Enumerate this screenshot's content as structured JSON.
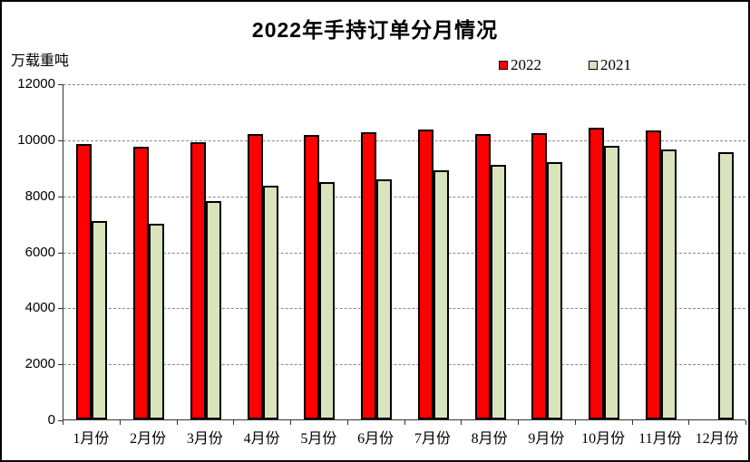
{
  "title": "2022年手持订单分月情况",
  "unit_label": "万载重吨",
  "legend": {
    "items": [
      {
        "label": "2022",
        "color": "#FF0000"
      },
      {
        "label": "2021",
        "color": "#D8E4BC"
      }
    ]
  },
  "chart_data": {
    "type": "bar",
    "title": "2022年手持订单分月情况",
    "ylabel": "万载重吨",
    "categories": [
      "1月份",
      "2月份",
      "3月份",
      "4月份",
      "5月份",
      "6月份",
      "7月份",
      "8月份",
      "9月份",
      "10月份",
      "11月份",
      "12月份"
    ],
    "series": [
      {
        "name": "2022",
        "color": "#FF0000",
        "values": [
          9820,
          9740,
          9890,
          10200,
          10170,
          10250,
          10350,
          10190,
          10220,
          10400,
          10330,
          null
        ]
      },
      {
        "name": "2021",
        "color": "#D8E4BC",
        "values": [
          7070,
          6980,
          7800,
          8360,
          8470,
          8560,
          8900,
          9080,
          9180,
          9770,
          9630,
          9550
        ]
      }
    ],
    "ylim": [
      0,
      12000
    ],
    "y_ticks": [
      0,
      2000,
      4000,
      6000,
      8000,
      10000,
      12000
    ],
    "grid": "horizontal-dashed",
    "legend_position": "top-right"
  }
}
